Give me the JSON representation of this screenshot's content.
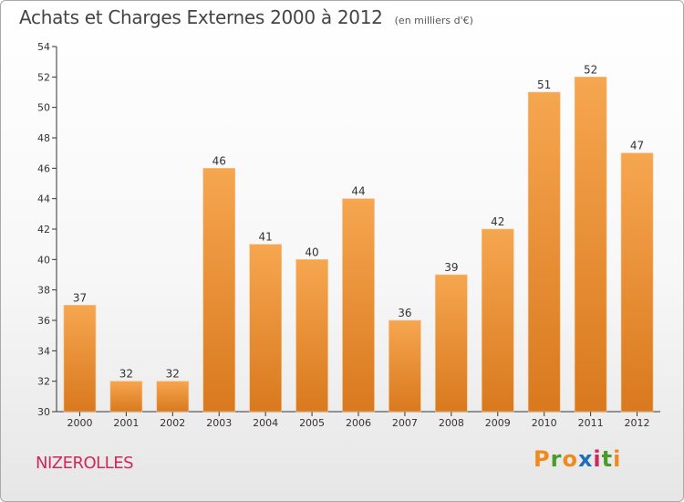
{
  "header": {
    "title": "Achats et Charges Externes 2000 à 2012",
    "subtitle": "(en milliers d'€)"
  },
  "footer": {
    "town": "NIZEROLLES",
    "brand": "Proxiti"
  },
  "colors": {
    "bar_light": "#f6a650",
    "bar_dark": "#d9791e",
    "axis": "#333333",
    "town": "#d1275b",
    "brand_letters": [
      "#f08a1c",
      "#4a9a2e",
      "#f08a1c",
      "#1f6fb8",
      "#d1275b",
      "#4a9a2e",
      "#f08a1c"
    ]
  },
  "chart_data": {
    "type": "bar",
    "categories": [
      "2000",
      "2001",
      "2002",
      "2003",
      "2004",
      "2005",
      "2006",
      "2007",
      "2008",
      "2009",
      "2010",
      "2011",
      "2012"
    ],
    "values": [
      37,
      32,
      32,
      46,
      41,
      40,
      44,
      36,
      39,
      42,
      51,
      52,
      47
    ],
    "ylim": [
      30,
      54
    ],
    "yticks": [
      30,
      32,
      34,
      36,
      38,
      40,
      42,
      44,
      46,
      48,
      50,
      52,
      54
    ],
    "grid": false,
    "data_labels": true
  }
}
